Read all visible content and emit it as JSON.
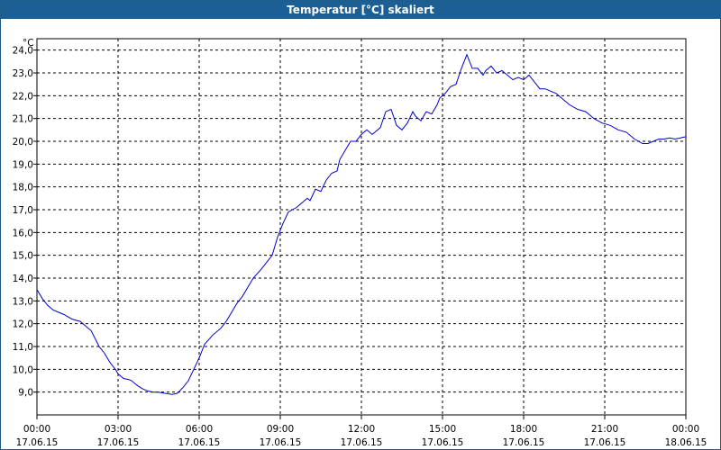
{
  "window": {
    "title": "Temperatur [°C] skaliert"
  },
  "chart_data": {
    "type": "line",
    "title": "Temperatur [°C] skaliert",
    "ylabel": "°C",
    "ylim": [
      8.0,
      24.5
    ],
    "yticks": [
      "9,0",
      "10,0",
      "11,0",
      "12,0",
      "13,0",
      "14,0",
      "15,0",
      "16,0",
      "17,0",
      "18,0",
      "19,0",
      "20,0",
      "21,0",
      "22,0",
      "23,0",
      "24,0"
    ],
    "xticks": [
      {
        "time": "00:00",
        "date": "17.06.15"
      },
      {
        "time": "03:00",
        "date": "17.06.15"
      },
      {
        "time": "06:00",
        "date": "17.06.15"
      },
      {
        "time": "09:00",
        "date": "17.06.15"
      },
      {
        "time": "12:00",
        "date": "17.06.15"
      },
      {
        "time": "15:00",
        "date": "17.06.15"
      },
      {
        "time": "18:00",
        "date": "17.06.15"
      },
      {
        "time": "21:00",
        "date": "17.06.15"
      },
      {
        "time": "00:00",
        "date": "18.06.15"
      }
    ],
    "grid": true,
    "line_color": "#0000cc",
    "series": [
      {
        "x": [
          0.0,
          0.2,
          0.4,
          0.6,
          0.8,
          1.0,
          1.3,
          1.6,
          1.8,
          2.0,
          2.3,
          2.5,
          2.7,
          2.9,
          3.0,
          3.2,
          3.4,
          3.5,
          3.7,
          3.9,
          4.1,
          4.3,
          4.5,
          4.7,
          5.0,
          5.2,
          5.4,
          5.6,
          5.8,
          6.0,
          6.2,
          6.5,
          6.8,
          7.0,
          7.2,
          7.4,
          7.6,
          7.8,
          8.0,
          8.3,
          8.5,
          8.7,
          8.9,
          9.1,
          9.3,
          9.6,
          9.8,
          10.0,
          10.1,
          10.3,
          10.5,
          10.7,
          10.9,
          11.1,
          11.2,
          11.4,
          11.6,
          11.8,
          12.0,
          12.2,
          12.4,
          12.5,
          12.7,
          12.9,
          13.1,
          13.3,
          13.5,
          13.7,
          13.9,
          14.0,
          14.2,
          14.4,
          14.6,
          14.8,
          14.9,
          15.1,
          15.3,
          15.5,
          15.7,
          15.9,
          16.1,
          16.3,
          16.5,
          16.6,
          16.8,
          17.0,
          17.2,
          17.4,
          17.6,
          17.8,
          18.0,
          18.2,
          18.4,
          18.6,
          18.8,
          19.0,
          19.2,
          19.4,
          19.7,
          20.0,
          20.3,
          20.6,
          20.9,
          21.2,
          21.5,
          21.8,
          22.1,
          22.4,
          22.6,
          22.8,
          23.0,
          23.2,
          23.4,
          23.6,
          23.8,
          24.0
        ],
        "values": [
          13.5,
          13.1,
          12.8,
          12.6,
          12.5,
          12.4,
          12.2,
          12.1,
          11.9,
          11.7,
          11.0,
          10.7,
          10.3,
          10.0,
          9.8,
          9.6,
          9.55,
          9.5,
          9.3,
          9.15,
          9.05,
          9.0,
          9.0,
          8.95,
          8.9,
          8.95,
          9.2,
          9.5,
          10.0,
          10.5,
          11.1,
          11.5,
          11.8,
          12.1,
          12.5,
          12.9,
          13.2,
          13.6,
          14.0,
          14.4,
          14.7,
          15.0,
          15.8,
          16.4,
          16.9,
          17.1,
          17.3,
          17.5,
          17.4,
          17.9,
          17.8,
          18.3,
          18.6,
          18.7,
          19.2,
          19.6,
          20.0,
          20.0,
          20.3,
          20.5,
          20.3,
          20.4,
          20.6,
          21.3,
          21.4,
          20.7,
          20.5,
          20.8,
          21.3,
          21.1,
          20.9,
          21.3,
          21.2,
          21.6,
          21.9,
          22.1,
          22.4,
          22.5,
          23.2,
          23.8,
          23.2,
          23.2,
          22.9,
          23.1,
          23.3,
          23.0,
          23.1,
          22.9,
          22.7,
          22.8,
          22.7,
          22.9,
          22.6,
          22.3,
          22.3,
          22.2,
          22.1,
          21.9,
          21.6,
          21.4,
          21.3,
          21.0,
          20.8,
          20.7,
          20.5,
          20.4,
          20.1,
          19.9,
          19.9,
          20.0,
          20.1,
          20.1,
          20.15,
          20.1,
          20.15,
          20.2
        ]
      }
    ]
  }
}
